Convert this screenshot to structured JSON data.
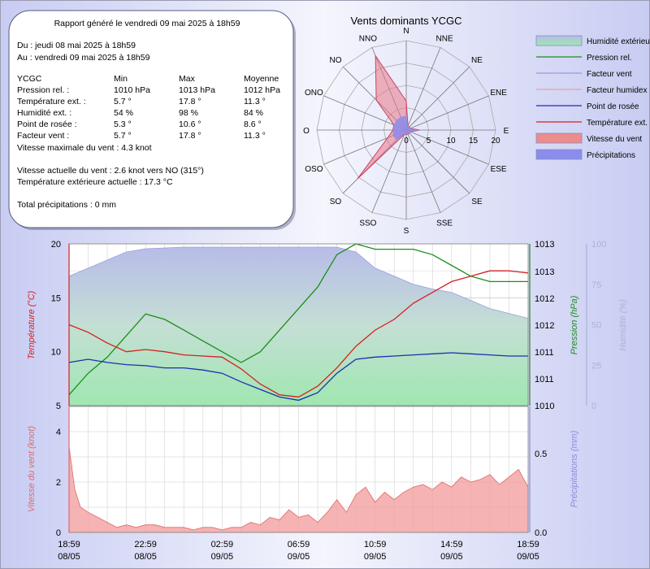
{
  "report": {
    "generated": "Rapport généré le vendredi 09 mai 2025 à 18h59",
    "from": "Du : jeudi 08 mai 2025 à 18h59",
    "to": "Au : vendredi 09 mai 2025 à 18h59",
    "header": [
      "YCGC",
      "Min",
      "Max",
      "Moyenne"
    ],
    "rows": [
      [
        "Pression rel. :",
        "1010 hPa",
        "1013 hPa",
        "1012 hPa"
      ],
      [
        "Température ext. :",
        "5.7 °",
        "17.8 °",
        "11.3 °"
      ],
      [
        "Humidité ext. :",
        "54 %",
        "98 %",
        "84 %"
      ],
      [
        "Point de rosée :",
        "5.3 °",
        "10.6 °",
        "8.6 °"
      ],
      [
        "Facteur vent :",
        "5.7 °",
        "17.8 °",
        "11.3 °"
      ]
    ],
    "max_wind": "Vitesse maximale du vent : 4.3 knot",
    "current_wind": "Vitesse actuelle du vent : 2.6 knot vers  NO (315°)",
    "current_temp": "Température extérieure actuelle :  17.3 °C",
    "total_precip": "Total précipitations :  0 mm"
  },
  "legend": [
    {
      "label": "Humidité extérieure",
      "kind": "box",
      "color": "#8ed8a8"
    },
    {
      "label": "Pression rel.",
      "kind": "line",
      "color": "#1a8f1a"
    },
    {
      "label": "Facteur vent",
      "kind": "line",
      "color": "#9a9ad8"
    },
    {
      "label": "Facteur humidex",
      "kind": "line",
      "color": "#e8a0a0"
    },
    {
      "label": "Point de rosée",
      "kind": "line",
      "color": "#1a2fb0"
    },
    {
      "label": "Température ext.",
      "kind": "line",
      "color": "#d42020"
    },
    {
      "label": "Vitesse du vent",
      "kind": "box",
      "color": "#ec8c8c"
    },
    {
      "label": "Précipitations",
      "kind": "box",
      "color": "#8c8cec"
    }
  ],
  "chart_data": [
    {
      "type": "radar",
      "title": "Vents dominants YCGC",
      "directions": [
        "N",
        "NNE",
        "NE",
        "ENE",
        "E",
        "ESE",
        "SE",
        "SSE",
        "S",
        "SSO",
        "SO",
        "OSO",
        "O",
        "ONO",
        "NO",
        "NNO"
      ],
      "ticks": [
        "5",
        "10",
        "15",
        "20"
      ],
      "rmax": 20,
      "values": [
        6.5,
        1.0,
        1.0,
        1.0,
        3.0,
        1.0,
        1.0,
        1.0,
        1.0,
        1.0,
        15.5,
        4.5,
        3.0,
        3.0,
        9.5,
        18.0
      ]
    },
    {
      "type": "line",
      "x_ticks": [
        {
          "hour": 0,
          "time": "18:59",
          "date": "08/05"
        },
        {
          "hour": 4,
          "time": "22:59",
          "date": "08/05"
        },
        {
          "hour": 8,
          "time": "02:59",
          "date": "09/05"
        },
        {
          "hour": 12,
          "time": "06:59",
          "date": "09/05"
        },
        {
          "hour": 16,
          "time": "10:59",
          "date": "09/05"
        },
        {
          "hour": 20,
          "time": "14:59",
          "date": "09/05"
        },
        {
          "hour": 24,
          "time": "18:59",
          "date": "09/05"
        }
      ],
      "top": {
        "y_temp": {
          "label": "Température (°C)",
          "range": [
            5,
            20
          ],
          "ticks": [
            "5",
            "10",
            "15",
            "20"
          ],
          "color": "#d42020"
        },
        "y_press": {
          "label": "Pression (hPa)",
          "range": [
            1010,
            1013
          ],
          "ticks": [
            "1010",
            "1011",
            "1011",
            "1012",
            "1012",
            "1013",
            "1013"
          ],
          "color": "#1a8f1a"
        },
        "y_hum": {
          "label": "Humidité (%)",
          "range": [
            0,
            100
          ],
          "ticks": [
            "0",
            "25",
            "50",
            "75",
            "100"
          ],
          "color": "#b0b0dc"
        },
        "humidity": [
          [
            0,
            80
          ],
          [
            1,
            85
          ],
          [
            2,
            90
          ],
          [
            3,
            95
          ],
          [
            4,
            97
          ],
          [
            6,
            98
          ],
          [
            8,
            98
          ],
          [
            10,
            98
          ],
          [
            12,
            98
          ],
          [
            14,
            98
          ],
          [
            15,
            95
          ],
          [
            16,
            85
          ],
          [
            17,
            80
          ],
          [
            18,
            75
          ],
          [
            19,
            72
          ],
          [
            20,
            70
          ],
          [
            21,
            65
          ],
          [
            22,
            60
          ],
          [
            23,
            57
          ],
          [
            24,
            54
          ]
        ],
        "pressure": [
          [
            0,
            1010.2
          ],
          [
            1,
            1010.6
          ],
          [
            2,
            1010.9
          ],
          [
            3,
            1011.3
          ],
          [
            4,
            1011.7
          ],
          [
            5,
            1011.6
          ],
          [
            6,
            1011.4
          ],
          [
            7,
            1011.2
          ],
          [
            8,
            1011.0
          ],
          [
            9,
            1010.8
          ],
          [
            10,
            1011.0
          ],
          [
            11,
            1011.4
          ],
          [
            12,
            1011.8
          ],
          [
            13,
            1012.2
          ],
          [
            14,
            1012.8
          ],
          [
            15,
            1013.0
          ],
          [
            16,
            1012.9
          ],
          [
            17,
            1012.9
          ],
          [
            18,
            1012.9
          ],
          [
            19,
            1012.8
          ],
          [
            20,
            1012.6
          ],
          [
            21,
            1012.4
          ],
          [
            22,
            1012.3
          ],
          [
            23,
            1012.3
          ],
          [
            24,
            1012.3
          ]
        ],
        "temperature": [
          [
            0,
            12.5
          ],
          [
            1,
            11.8
          ],
          [
            2,
            10.8
          ],
          [
            3,
            10.0
          ],
          [
            4,
            10.2
          ],
          [
            5,
            10.0
          ],
          [
            6,
            9.7
          ],
          [
            7,
            9.6
          ],
          [
            8,
            9.5
          ],
          [
            9,
            8.4
          ],
          [
            10,
            7.0
          ],
          [
            11,
            6.0
          ],
          [
            12,
            5.8
          ],
          [
            13,
            6.8
          ],
          [
            14,
            8.5
          ],
          [
            15,
            10.5
          ],
          [
            16,
            12.0
          ],
          [
            17,
            13.0
          ],
          [
            18,
            14.5
          ],
          [
            19,
            15.5
          ],
          [
            20,
            16.5
          ],
          [
            21,
            17.0
          ],
          [
            22,
            17.5
          ],
          [
            23,
            17.5
          ],
          [
            24,
            17.3
          ]
        ],
        "dew_point": [
          [
            0,
            9.0
          ],
          [
            1,
            9.3
          ],
          [
            2,
            9.0
          ],
          [
            3,
            8.8
          ],
          [
            4,
            8.7
          ],
          [
            5,
            8.5
          ],
          [
            6,
            8.5
          ],
          [
            7,
            8.3
          ],
          [
            8,
            8.0
          ],
          [
            9,
            7.2
          ],
          [
            10,
            6.5
          ],
          [
            11,
            5.8
          ],
          [
            12,
            5.5
          ],
          [
            13,
            6.2
          ],
          [
            14,
            8.0
          ],
          [
            15,
            9.3
          ],
          [
            16,
            9.5
          ],
          [
            17,
            9.6
          ],
          [
            18,
            9.7
          ],
          [
            19,
            9.8
          ],
          [
            20,
            9.9
          ],
          [
            21,
            9.8
          ],
          [
            22,
            9.7
          ],
          [
            23,
            9.6
          ],
          [
            24,
            9.6
          ]
        ]
      },
      "bottom": {
        "y_wind": {
          "label": "Vitesse du vent (knot)",
          "range": [
            0,
            5
          ],
          "ticks": [
            "0",
            "2",
            "4"
          ],
          "color": "#e06a6a"
        },
        "y_precip": {
          "label": "Précipitations (mm)",
          "range": [
            0,
            0.8
          ],
          "ticks": [
            "0.0",
            "0.5"
          ],
          "color": "#8c8cdc"
        },
        "wind": [
          [
            0,
            3.4
          ],
          [
            0.3,
            1.7
          ],
          [
            0.6,
            1.0
          ],
          [
            1,
            0.8
          ],
          [
            1.5,
            0.6
          ],
          [
            2,
            0.4
          ],
          [
            2.5,
            0.2
          ],
          [
            3,
            0.3
          ],
          [
            3.5,
            0.2
          ],
          [
            4,
            0.3
          ],
          [
            4.5,
            0.3
          ],
          [
            5,
            0.2
          ],
          [
            5.5,
            0.2
          ],
          [
            6,
            0.2
          ],
          [
            6.5,
            0.1
          ],
          [
            7,
            0.2
          ],
          [
            7.5,
            0.2
          ],
          [
            8,
            0.1
          ],
          [
            8.5,
            0.2
          ],
          [
            9,
            0.2
          ],
          [
            9.5,
            0.4
          ],
          [
            10,
            0.3
          ],
          [
            10.5,
            0.6
          ],
          [
            11,
            0.5
          ],
          [
            11.5,
            0.9
          ],
          [
            12,
            0.6
          ],
          [
            12.5,
            0.7
          ],
          [
            13,
            0.4
          ],
          [
            13.5,
            0.8
          ],
          [
            14,
            1.3
          ],
          [
            14.5,
            0.8
          ],
          [
            15,
            1.5
          ],
          [
            15.5,
            1.8
          ],
          [
            16,
            1.2
          ],
          [
            16.5,
            1.6
          ],
          [
            17,
            1.3
          ],
          [
            17.5,
            1.6
          ],
          [
            18,
            1.8
          ],
          [
            18.5,
            1.9
          ],
          [
            19,
            1.7
          ],
          [
            19.5,
            2.0
          ],
          [
            20,
            1.8
          ],
          [
            20.5,
            2.2
          ],
          [
            21,
            2.0
          ],
          [
            21.5,
            2.1
          ],
          [
            22,
            2.3
          ],
          [
            22.5,
            1.9
          ],
          [
            23,
            2.2
          ],
          [
            23.5,
            2.5
          ],
          [
            24,
            1.8
          ]
        ],
        "precip": []
      }
    }
  ]
}
